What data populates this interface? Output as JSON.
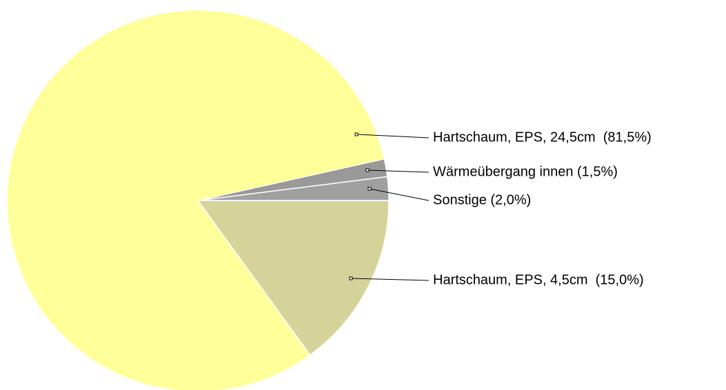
{
  "chart_data": {
    "type": "pie",
    "values": [
      2.0,
      1.5,
      81.5,
      15.0
    ],
    "value_labels": [
      "Sonstige (2,0%)",
      "Wärmeübergang innen (1,5%)",
      "Hartschaum, EPS, 24,5cm  (81,5%)",
      "Hartschaum, EPS, 4,5cm  (15,0%)"
    ],
    "colors": [
      "#a0a0a0",
      "#999999",
      "#ffff99",
      "#d4d49a"
    ]
  }
}
